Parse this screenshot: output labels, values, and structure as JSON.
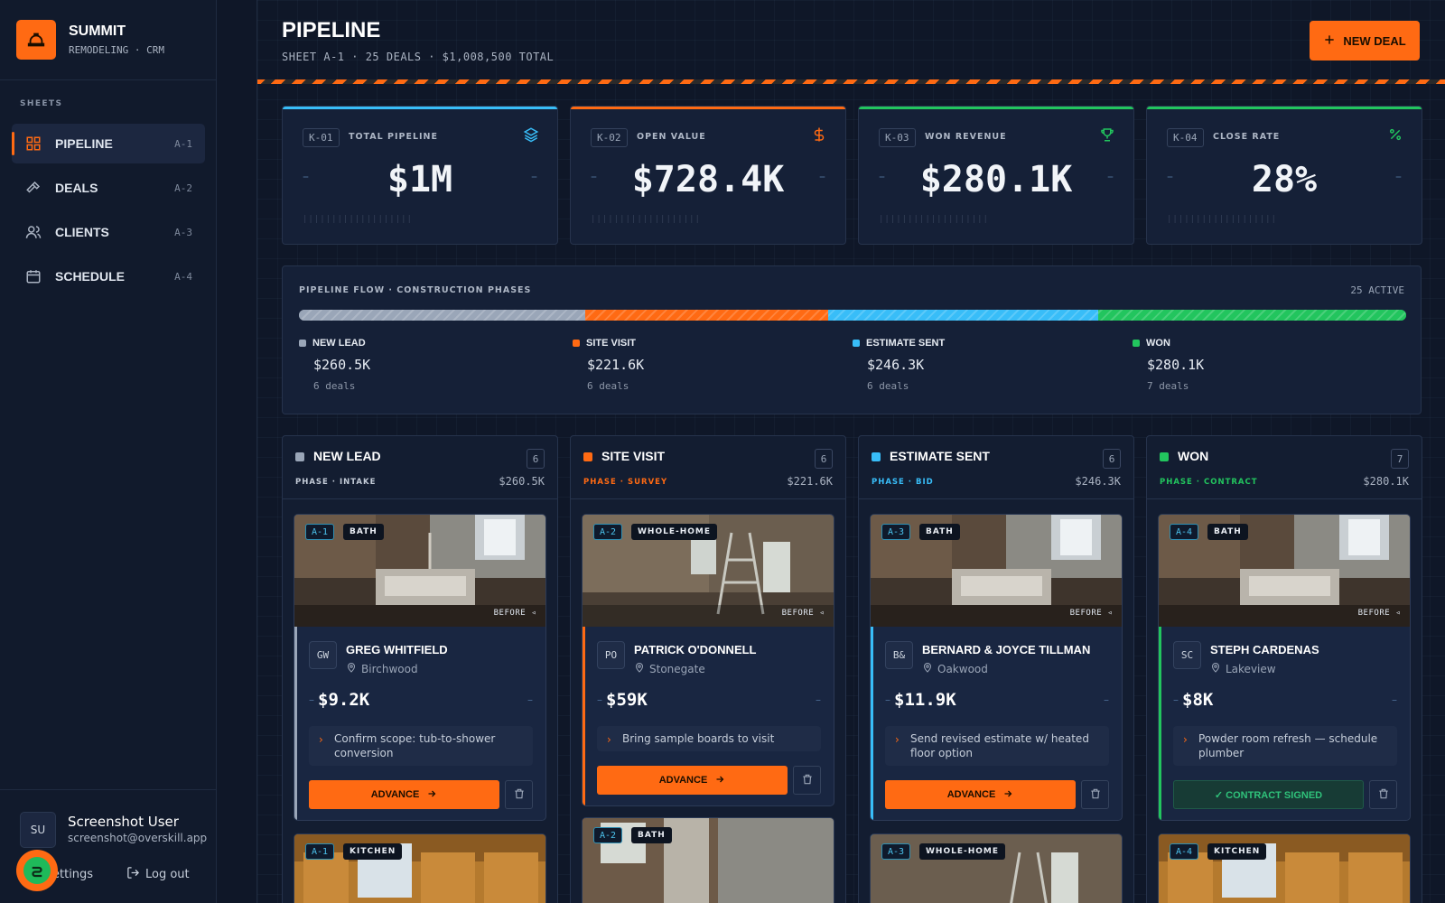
{
  "brand": {
    "name": "SUMMIT",
    "subtitle": "REMODELING · CRM"
  },
  "sidebar": {
    "section_label": "SHEETS",
    "items": [
      {
        "label": "PIPELINE",
        "code": "A-1",
        "icon": "grid-icon",
        "active": true
      },
      {
        "label": "DEALS",
        "code": "A-2",
        "icon": "hammer-icon",
        "active": false
      },
      {
        "label": "CLIENTS",
        "code": "A-3",
        "icon": "users-icon",
        "active": false
      },
      {
        "label": "SCHEDULE",
        "code": "A-4",
        "icon": "calendar-icon",
        "active": false
      }
    ],
    "user": {
      "initials": "SU",
      "name": "Screenshot User",
      "email": "screenshot@overskill.app"
    },
    "settings_label": "ettings",
    "logout_label": "Log out"
  },
  "header": {
    "title": "PIPELINE",
    "subtitle": "SHEET A-1 · 25 DEALS · $1,008,500 TOTAL",
    "new_deal_label": "NEW DEAL"
  },
  "kpis": [
    {
      "code": "K-01",
      "label": "TOTAL PIPELINE",
      "value": "$1M",
      "icon": "layers-icon",
      "color": "#38bdf8"
    },
    {
      "code": "K-02",
      "label": "OPEN VALUE",
      "value": "$728.4K",
      "icon": "dollar-icon",
      "color": "#ff6a13"
    },
    {
      "code": "K-03",
      "label": "WON REVENUE",
      "value": "$280.1K",
      "icon": "trophy-icon",
      "color": "#22c55e"
    },
    {
      "code": "K-04",
      "label": "CLOSE RATE",
      "value": "28%",
      "icon": "percent-icon",
      "color": "#22c55e"
    }
  ],
  "flow": {
    "title": "PIPELINE FLOW · CONSTRUCTION PHASES",
    "active_label": "25 ACTIVE",
    "stages": [
      {
        "name": "NEW LEAD",
        "value": "$260.5K",
        "amount": 260.5,
        "count": "6 deals",
        "color": "#9aa6b8"
      },
      {
        "name": "SITE VISIT",
        "value": "$221.6K",
        "amount": 221.6,
        "count": "6 deals",
        "color": "#ff6a13"
      },
      {
        "name": "ESTIMATE SENT",
        "value": "$246.3K",
        "amount": 246.3,
        "count": "6 deals",
        "color": "#38bdf8"
      },
      {
        "name": "WON",
        "value": "$280.1K",
        "amount": 280.1,
        "count": "7 deals",
        "color": "#22c55e"
      }
    ]
  },
  "columns": [
    {
      "name": "NEW LEAD",
      "count": "6",
      "phase": "PHASE · INTAKE",
      "total": "$260.5K",
      "color": "#9aa6b8",
      "phase_color": "#c3cbd7",
      "card": {
        "code": "A-1",
        "type": "BATH",
        "before": "BEFORE",
        "initials": "GW",
        "client": "GREG WHITFIELD",
        "location": "Birchwood",
        "amount": "$9.2K",
        "note": "Confirm scope: tub-to-shower conversion",
        "action": "ADVANCE"
      },
      "next": {
        "code": "A-1",
        "type": "KITCHEN"
      }
    },
    {
      "name": "SITE VISIT",
      "count": "6",
      "phase": "PHASE · SURVEY",
      "total": "$221.6K",
      "color": "#ff6a13",
      "phase_color": "#ff6a13",
      "card": {
        "code": "A-2",
        "type": "WHOLE-HOME",
        "before": "BEFORE",
        "initials": "PO",
        "client": "PATRICK O'DONNELL",
        "location": "Stonegate",
        "amount": "$59K",
        "note": "Bring sample boards to visit",
        "action": "ADVANCE"
      },
      "next": {
        "code": "A-2",
        "type": "BATH"
      }
    },
    {
      "name": "ESTIMATE SENT",
      "count": "6",
      "phase": "PHASE · BID",
      "total": "$246.3K",
      "color": "#38bdf8",
      "phase_color": "#38bdf8",
      "card": {
        "code": "A-3",
        "type": "BATH",
        "before": "BEFORE",
        "initials": "B&",
        "client": "BERNARD & JOYCE TILLMAN",
        "location": "Oakwood",
        "amount": "$11.9K",
        "note": "Send revised estimate w/ heated floor option",
        "action": "ADVANCE"
      },
      "next": {
        "code": "A-3",
        "type": "WHOLE-HOME"
      }
    },
    {
      "name": "WON",
      "count": "7",
      "phase": "PHASE · CONTRACT",
      "total": "$280.1K",
      "color": "#22c55e",
      "phase_color": "#22c55e",
      "card": {
        "code": "A-4",
        "type": "BATH",
        "before": "BEFORE",
        "initials": "SC",
        "client": "STEPH CARDENAS",
        "location": "Lakeview",
        "amount": "$8K",
        "note": "Powder room refresh — schedule plumber",
        "action": "✓ CONTRACT SIGNED"
      },
      "next": {
        "code": "A-4",
        "type": "KITCHEN"
      }
    }
  ]
}
